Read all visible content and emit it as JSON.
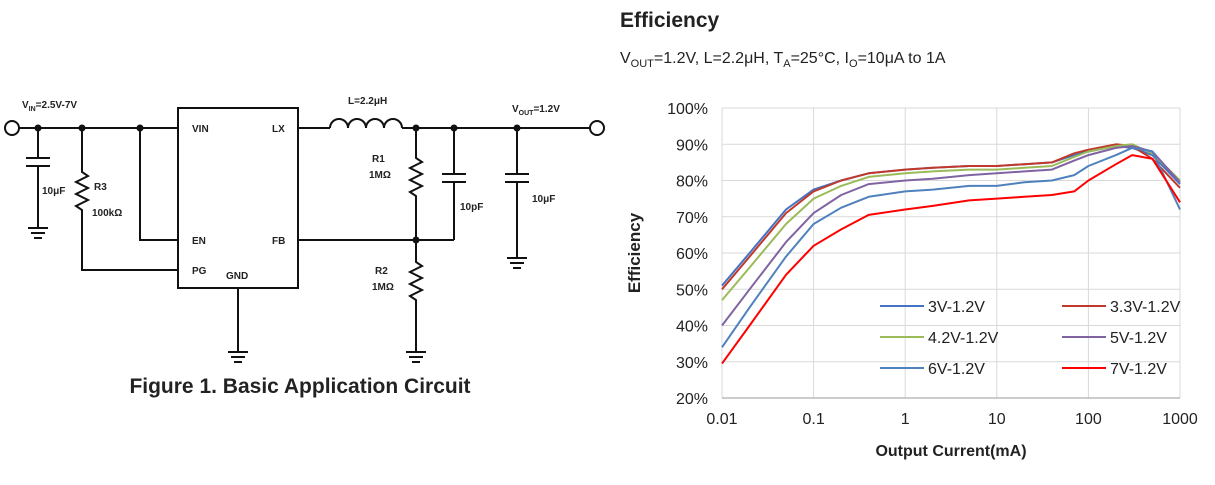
{
  "circuit": {
    "vin": [
      "V",
      "IN",
      "=2.5V-7V"
    ],
    "vout": [
      "V",
      "OUT",
      "=1.2V"
    ],
    "inductor": "L=2.2μH",
    "c_in": "10μF",
    "r3_name": "R3",
    "r3_value": "100kΩ",
    "pin_vin": "VIN",
    "pin_lx": "LX",
    "pin_en": "EN",
    "pin_fb": "FB",
    "pin_pg": "PG",
    "pin_gnd": "GND",
    "r1_name": "R1",
    "r1_value": "1MΩ",
    "c_ff": "10pF",
    "c_out": "10μF",
    "r2_name": "R2",
    "r2_value": "1MΩ"
  },
  "caption": "Figure 1. Basic Application Circuit",
  "chart_data": {
    "type": "line",
    "title": "Efficiency",
    "subtitle": [
      "V",
      "OUT",
      "=1.2V, L=2.2μH, T",
      "A",
      "=25°C, I",
      "O",
      "=10μA to 1A"
    ],
    "x_label": "Output Current(mA)",
    "y_label": "Efficiency",
    "log_x": true,
    "grid": true,
    "legend": "lower right",
    "x": [
      0.01,
      0.02,
      0.05,
      0.1,
      0.2,
      0.4,
      1,
      2,
      5,
      10,
      20,
      40,
      70,
      100,
      200,
      300,
      500,
      1000
    ],
    "series": [
      {
        "name": "3V-1.2V",
        "color": "#4472c4",
        "values": [
          51,
          60,
          72,
          77.5,
          80,
          82,
          83,
          83.5,
          84,
          84,
          84.5,
          85,
          87,
          88,
          89.5,
          89,
          87,
          79
        ]
      },
      {
        "name": "3.3V-1.2V",
        "color": "#c0392b",
        "values": [
          50,
          59,
          71,
          77,
          80,
          82,
          83,
          83.5,
          84,
          84,
          84.5,
          85,
          87.5,
          88.5,
          90,
          89.5,
          86,
          78
        ]
      },
      {
        "name": "4.2V-1.2V",
        "color": "#9bbb59",
        "values": [
          47,
          56,
          68,
          75,
          78.5,
          81,
          82,
          82.5,
          83,
          83,
          83.5,
          84,
          86.5,
          88,
          89.5,
          90,
          87.5,
          80
        ]
      },
      {
        "name": "5V-1.2V",
        "color": "#8064a2",
        "values": [
          40,
          50,
          63,
          71,
          76,
          79,
          80,
          80.5,
          81.5,
          82,
          82.5,
          83,
          85.5,
          87,
          89,
          89.5,
          88,
          79.5
        ]
      },
      {
        "name": "6V-1.2V",
        "color": "#4f81bd",
        "values": [
          34,
          45,
          59,
          68,
          72.5,
          75.5,
          77,
          77.5,
          78.5,
          78.5,
          79.5,
          80,
          81.5,
          84,
          87,
          89,
          88,
          72
        ]
      },
      {
        "name": "7V-1.2V",
        "color": "#ff0000",
        "values": [
          29.5,
          40,
          54,
          62,
          66.5,
          70.5,
          72,
          73,
          74.5,
          75,
          75.5,
          76,
          77,
          80,
          84.5,
          87,
          86,
          74
        ]
      }
    ],
    "xlim": [
      0.01,
      1000
    ],
    "xticks": [
      0.01,
      0.1,
      1,
      10,
      100,
      1000
    ],
    "ylim": [
      20,
      100
    ],
    "yticks": [
      {
        "value": 20,
        "label": "20%"
      },
      {
        "value": 30,
        "label": "30%"
      },
      {
        "value": 40,
        "label": "40%"
      },
      {
        "value": 50,
        "label": "50%"
      },
      {
        "value": 60,
        "label": "60%"
      },
      {
        "value": 70,
        "label": "70%"
      },
      {
        "value": 80,
        "label": "80%"
      },
      {
        "value": 90,
        "label": "90%"
      },
      {
        "value": 100,
        "label": "100%"
      }
    ]
  }
}
